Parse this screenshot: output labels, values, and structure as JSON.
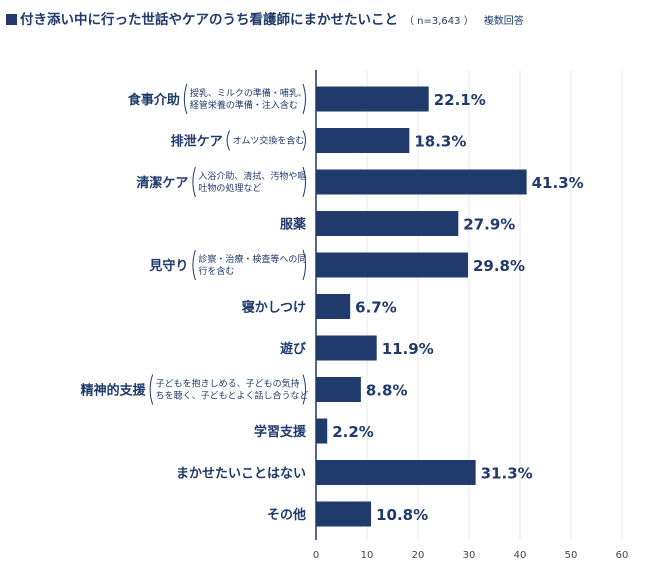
{
  "chart_data": {
    "type": "bar",
    "orientation": "horizontal",
    "title": "付き添い中に行った世話やケアのうち看護師にまかせたいこと",
    "sample_size": "（ n=3,643 ）",
    "response_type": "複数回答",
    "categories": [
      {
        "label": "食事介助",
        "note": [
          "授乳、ミルクの準備・哺乳、",
          "経管栄養の準備・注入含む"
        ]
      },
      {
        "label": "排泄ケア",
        "note": [
          "オムツ交換を含む"
        ]
      },
      {
        "label": "清潔ケア",
        "note": [
          "入浴介助、清拭、汚物や嘔",
          "吐物の処理など"
        ]
      },
      {
        "label": "服薬",
        "note": []
      },
      {
        "label": "見守り",
        "note": [
          "診察・治療・検査等への同",
          "行を含む"
        ]
      },
      {
        "label": "寝かしつけ",
        "note": []
      },
      {
        "label": "遊び",
        "note": []
      },
      {
        "label": "精神的支援",
        "note": [
          "子どもを抱きしめる、子どもの気持",
          "ちを聴く、子どもとよく話し合うなど"
        ]
      },
      {
        "label": "学習支援",
        "note": []
      },
      {
        "label": "まかせたいことはない",
        "note": []
      },
      {
        "label": "その他",
        "note": []
      }
    ],
    "values": [
      22.1,
      18.3,
      41.3,
      27.9,
      29.8,
      6.7,
      11.9,
      8.8,
      2.2,
      31.3,
      10.8
    ],
    "value_labels": [
      "22.1%",
      "18.3%",
      "41.3%",
      "27.9%",
      "29.8%",
      "6.7%",
      "11.9%",
      "8.8%",
      "2.2%",
      "31.3%",
      "10.8%"
    ],
    "xlim": [
      0,
      60
    ],
    "xticks": [
      "0",
      "10",
      "20",
      "30",
      "40",
      "50",
      "60"
    ],
    "grid": true,
    "colors": {
      "bar": "#1f3a6b",
      "text": "#1f3a6b",
      "grid": "#e6e9ee",
      "axis": "#1f3a6b"
    }
  }
}
